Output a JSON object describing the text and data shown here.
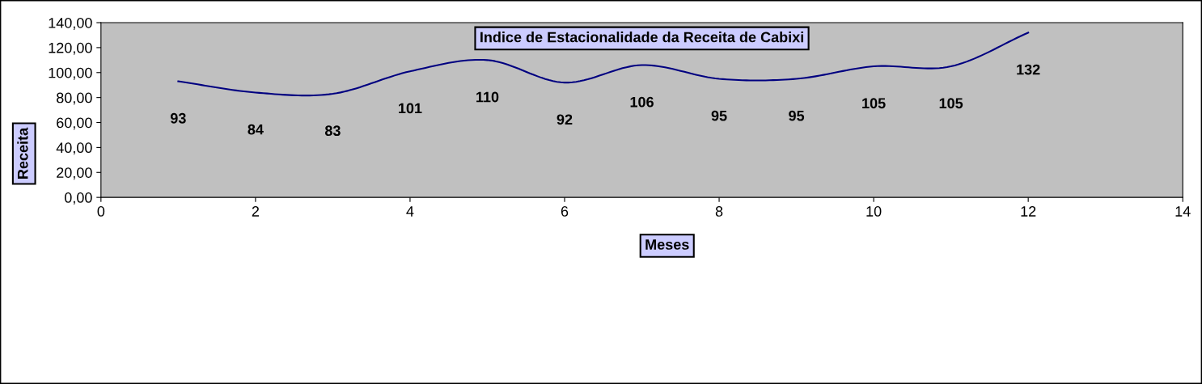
{
  "chart_data": {
    "type": "line",
    "title": "Indice de Estacionalidade da Receita de Cabixi",
    "xlabel": "Meses",
    "ylabel": "Receita",
    "x": [
      1,
      2,
      3,
      4,
      5,
      6,
      7,
      8,
      9,
      10,
      11,
      12
    ],
    "series": [
      {
        "color": "#000080",
        "values": [
          93,
          84,
          83,
          101,
          110,
          92,
          106,
          95,
          95,
          105,
          105,
          132
        ]
      }
    ],
    "xlim": [
      0,
      14
    ],
    "xticks": [
      0,
      2,
      4,
      6,
      8,
      10,
      12,
      14
    ],
    "ylim": [
      0,
      140
    ],
    "yticks": [
      {
        "value": 0,
        "label": "0,00"
      },
      {
        "value": 20,
        "label": "20,00"
      },
      {
        "value": 40,
        "label": "40,00"
      },
      {
        "value": 60,
        "label": "60,00"
      },
      {
        "value": 80,
        "label": "80,00"
      },
      {
        "value": 100,
        "label": "100,00"
      },
      {
        "value": 120,
        "label": "120,00"
      },
      {
        "value": 140,
        "label": "140,00"
      }
    ],
    "data_labels": true,
    "grid": false,
    "legend": false,
    "marker": "none",
    "line_style": "solid"
  }
}
